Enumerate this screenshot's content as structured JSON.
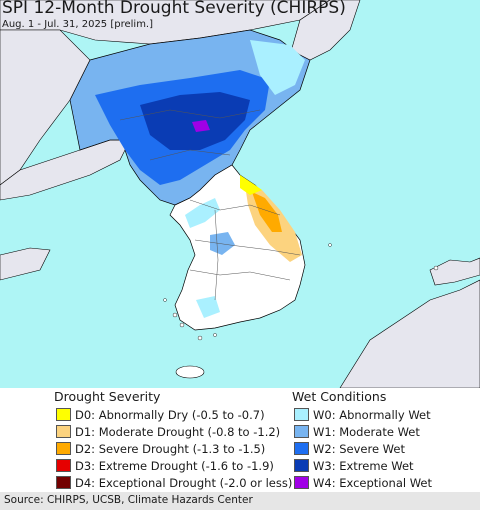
{
  "header": {
    "title": "SPI 12-Month Drought Severity (CHIRPS)",
    "subtitle": "Aug. 1 - Jul. 31, 2025 [prelim.]"
  },
  "legend": {
    "drought_title": "Drought Severity",
    "wet_title": "Wet Conditions",
    "drought_items": [
      {
        "label": "D0: Abnormally Dry (-0.5 to -0.7)",
        "color": "#ffff00"
      },
      {
        "label": "D1: Moderate Drought (-0.8 to -1.2)",
        "color": "#fcd37f"
      },
      {
        "label": "D2: Severe Drought (-1.3 to -1.5)",
        "color": "#ffaa00"
      },
      {
        "label": "D3: Extreme Drought (-1.6 to -1.9)",
        "color": "#e60000"
      },
      {
        "label": "D4: Exceptional Drought (-2.0 or less)",
        "color": "#730000"
      }
    ],
    "wet_items": [
      {
        "label": "W0: Abnormally Wet",
        "color": "#aaf0ff"
      },
      {
        "label": "W1: Moderate Wet",
        "color": "#78b4f0"
      },
      {
        "label": "W2: Severe Wet",
        "color": "#1e6ef0"
      },
      {
        "label": "W3: Extreme Wet",
        "color": "#0a3cb4"
      },
      {
        "label": "W4: Exceptional Wet",
        "color": "#a000e6"
      }
    ]
  },
  "footer": {
    "source": "Source: CHIRPS, UCSB, Climate Hazards Center"
  },
  "map": {
    "ocean_color": "#aef5f5",
    "land_color": "#ffffff",
    "outside_land_color": "#e6e6ee"
  }
}
